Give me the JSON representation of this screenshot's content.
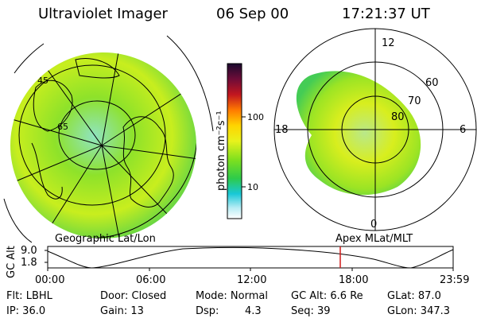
{
  "header": {
    "instrument": "Ultraviolet Imager",
    "date": "06 Sep 00",
    "time": "17:21:37 UT"
  },
  "colorbar": {
    "unit_label": "photon cm⁻²s⁻¹",
    "ticks": [
      "100",
      "10"
    ],
    "colors": [
      "#1a0a2e",
      "#6e0c38",
      "#c2161f",
      "#ff7a00",
      "#ffd400",
      "#e8f21c",
      "#7fe01e",
      "#2ecb4a",
      "#18c8d8",
      "#b7ecf4",
      "#ffffff"
    ]
  },
  "left_panel": {
    "caption": "Geographic Lat/Lon",
    "labels": [
      "45",
      "65"
    ]
  },
  "right_panel": {
    "caption": "Apex MLat/MLT",
    "mlt_labels": {
      "top": "12",
      "left": "18",
      "right": "6",
      "bottom": "0"
    },
    "lat_labels": [
      "60",
      "70",
      "80"
    ]
  },
  "altitude_plot": {
    "ylabel": "GC Alt",
    "yticks": [
      "9.0",
      "1.8"
    ],
    "xticks": [
      "00:00",
      "06:00",
      "12:00",
      "18:00",
      "23:59"
    ],
    "marker_color": "#d11a1a"
  },
  "status": {
    "row1": {
      "filter": "Flt: LBHL",
      "door": "Door: Closed",
      "mode": "Mode: Normal",
      "gc_alt": "GC Alt: 6.6 Re",
      "glat": "GLat: 87.0"
    },
    "row2": {
      "ip": "IP: 36.0",
      "gain": "Gain: 13",
      "dsp_label": "Dsp:",
      "dsp_value": "4.3",
      "seq": "Seq: 39",
      "glon": "GLon: 347.3"
    }
  }
}
